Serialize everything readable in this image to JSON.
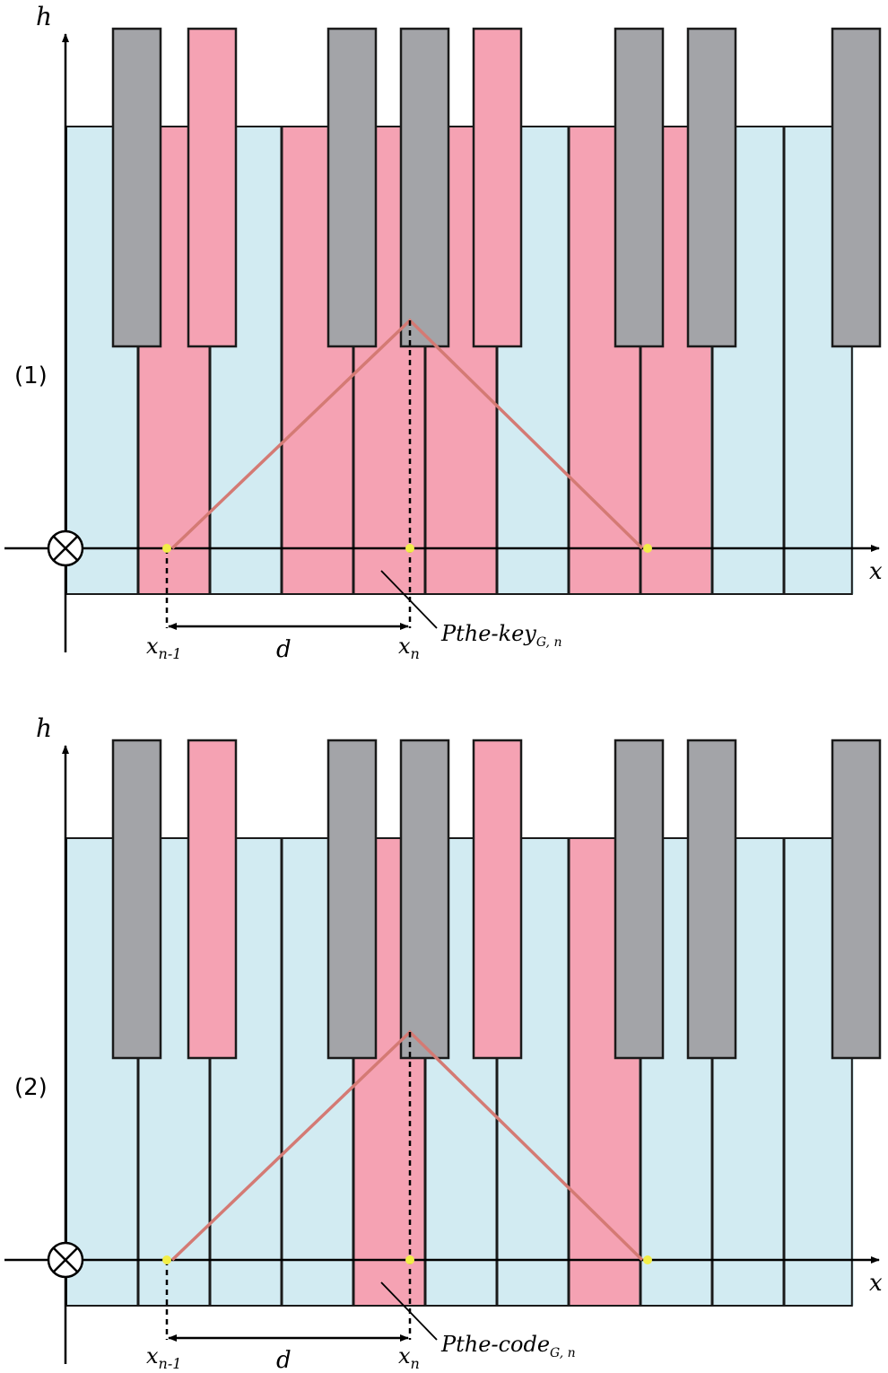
{
  "colors": {
    "white_key": "#d2ebf2",
    "black_key": "#a3a4a8",
    "highlight": "#f5a2b3",
    "outline": "#1a1a1a",
    "triangle": "#d47a74",
    "point": "#f2ee48"
  },
  "panels": [
    {
      "label": "(1)",
      "axis_y_label": "h",
      "axis_x_label": "x",
      "origin_icon": "circled-times-icon",
      "x_prev_main": "x",
      "x_prev_sub": "n-1",
      "x_curr_main": "x",
      "x_curr_sub": "n",
      "distance_label": "d",
      "callout_main": "Pthe-key",
      "callout_sub": "G, n",
      "highlighted_white_keys": [
        1,
        3,
        4,
        5,
        7,
        8
      ],
      "highlighted_black_keys": [
        1,
        4
      ]
    },
    {
      "label": "(2)",
      "axis_y_label": "h",
      "axis_x_label": "x",
      "origin_icon": "circled-times-icon",
      "x_prev_main": "x",
      "x_prev_sub": "n-1",
      "x_curr_main": "x",
      "x_curr_sub": "n",
      "distance_label": "d",
      "callout_main": "Pthe-code",
      "callout_sub": "G, n",
      "highlighted_white_keys": [
        4,
        7
      ],
      "highlighted_black_keys": [
        1,
        4
      ]
    }
  ]
}
